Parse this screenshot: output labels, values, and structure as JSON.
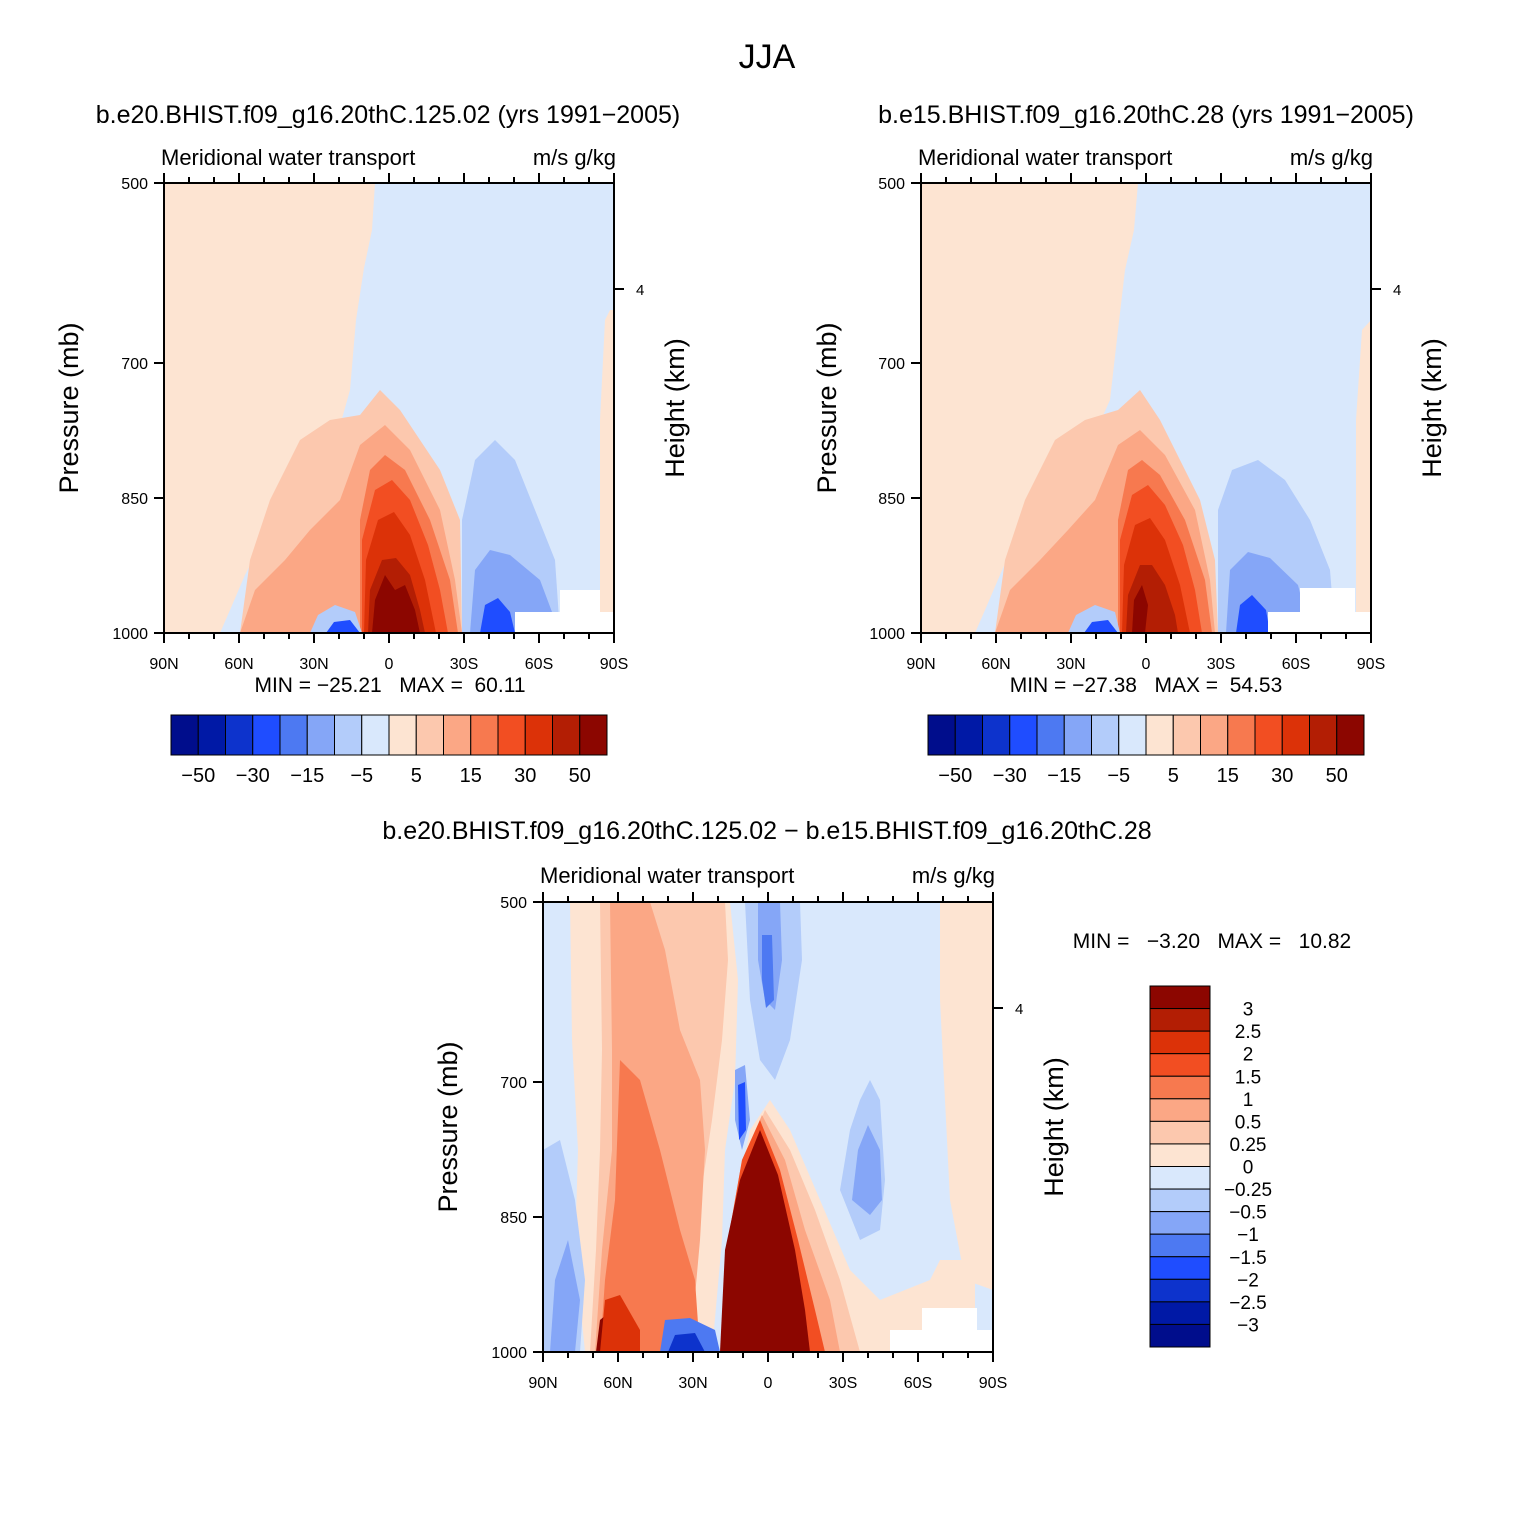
{
  "figure_title": "JJA",
  "colors": {
    "blue9": "#000d8c",
    "blue8": "#0019a6",
    "blue7": "#0d33cc",
    "blue6": "#1f4dff",
    "blue5": "#4d79f2",
    "blue4": "#85a6f7",
    "blue3": "#b3ccfa",
    "blue2": "#d9e8fc",
    "red1": "#fde4d2",
    "red2": "#fcc8ae",
    "red3": "#fba785",
    "red4": "#f7794f",
    "red5": "#f24e22",
    "red6": "#dc3208",
    "red7": "#b31e04",
    "red8": "#8c0600"
  },
  "chart_data": [
    {
      "type": "heatmap",
      "panel": "top-left",
      "title": "b.e20.BHIST.f09_g16.20thC.125.02 (yrs 1991−2005)",
      "left_label": "Meridional water transport",
      "right_label": "m/s g/kg",
      "xlabel": "",
      "ylabel": "Pressure (mb)",
      "y2label": "Height (km)",
      "x_ticks": [
        "90N",
        "60N",
        "30N",
        "0",
        "30S",
        "60S",
        "90S"
      ],
      "y_ticks": [
        "500",
        "700",
        "850",
        "1000"
      ],
      "y2_ticks": [
        "4"
      ],
      "ylim": [
        500,
        1000
      ],
      "min_max": "MIN = −25.21   MAX =  60.11",
      "min": -25.21,
      "max": 60.11,
      "colorbar": {
        "orientation": "horizontal",
        "labels": [
          "−50",
          "−30",
          "−15",
          "−5",
          "5",
          "15",
          "30",
          "50"
        ],
        "levels": [
          -50,
          -40,
          -30,
          -20,
          -15,
          -10,
          -5,
          0,
          5,
          10,
          15,
          20,
          30,
          40,
          50
        ]
      }
    },
    {
      "type": "heatmap",
      "panel": "top-right",
      "title": "b.e15.BHIST.f09_g16.20thC.28 (yrs 1991−2005)",
      "left_label": "Meridional water transport",
      "right_label": "m/s g/kg",
      "xlabel": "",
      "ylabel": "Pressure (mb)",
      "y2label": "Height (km)",
      "x_ticks": [
        "90N",
        "60N",
        "30N",
        "0",
        "30S",
        "60S",
        "90S"
      ],
      "y_ticks": [
        "500",
        "700",
        "850",
        "1000"
      ],
      "y2_ticks": [
        "4"
      ],
      "ylim": [
        500,
        1000
      ],
      "min_max": "MIN = −27.38   MAX =  54.53",
      "min": -27.38,
      "max": 54.53,
      "colorbar": {
        "orientation": "horizontal",
        "labels": [
          "−50",
          "−30",
          "−15",
          "−5",
          "5",
          "15",
          "30",
          "50"
        ],
        "levels": [
          -50,
          -40,
          -30,
          -20,
          -15,
          -10,
          -5,
          0,
          5,
          10,
          15,
          20,
          30,
          40,
          50
        ]
      }
    },
    {
      "type": "heatmap",
      "panel": "bottom",
      "title": "b.e20.BHIST.f09_g16.20thC.125.02 − b.e15.BHIST.f09_g16.20thC.28",
      "left_label": "Meridional water transport",
      "right_label": "m/s g/kg",
      "xlabel": "",
      "ylabel": "Pressure (mb)",
      "y2label": "Height (km)",
      "x_ticks": [
        "90N",
        "60N",
        "30N",
        "0",
        "30S",
        "60S",
        "90S"
      ],
      "y_ticks": [
        "500",
        "700",
        "850",
        "1000"
      ],
      "y2_ticks": [
        "4"
      ],
      "ylim": [
        500,
        1000
      ],
      "min_max": "MIN =   −3.20   MAX =   10.82",
      "min": -3.2,
      "max": 10.82,
      "colorbar": {
        "orientation": "vertical",
        "labels": [
          "3",
          "2.5",
          "2",
          "1.5",
          "1",
          "0.5",
          "0.25",
          "0",
          "−0.25",
          "−0.5",
          "−1",
          "−1.5",
          "−2",
          "−2.5",
          "−3"
        ],
        "levels": [
          3,
          2.5,
          2,
          1.5,
          1,
          0.5,
          0.25,
          0,
          -0.25,
          -0.5,
          -1,
          -1.5,
          -2,
          -2.5,
          -3
        ]
      }
    }
  ]
}
